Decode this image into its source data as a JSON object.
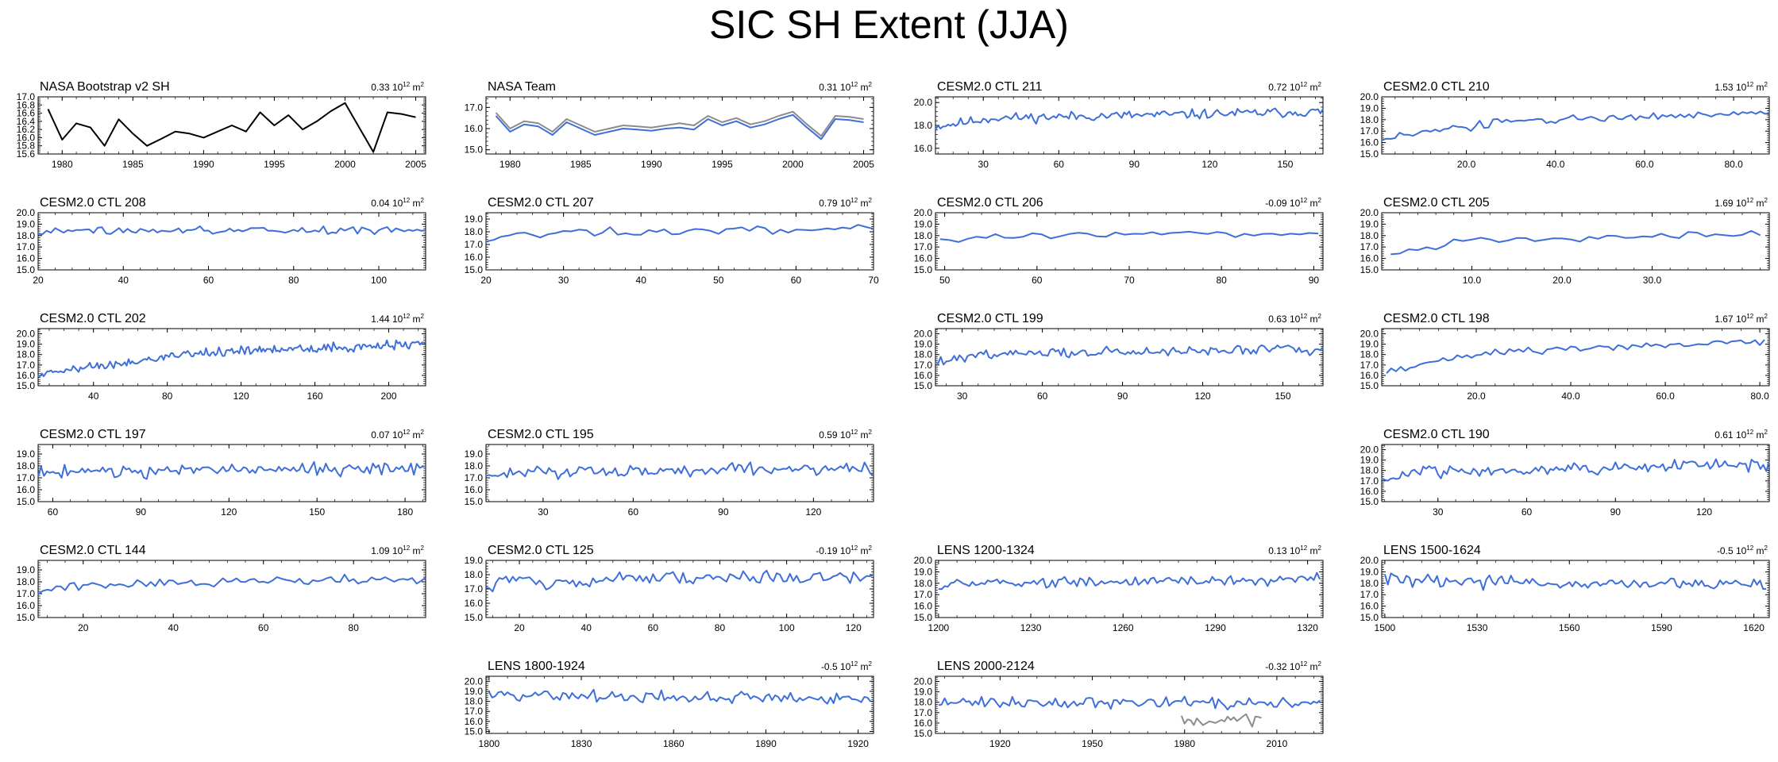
{
  "title": "SIC SH Extent (JJA)",
  "unit_prefix": "10",
  "unit_exp": "12",
  "unit_suffix": "m",
  "unit_suffix_exp": "2",
  "colors": {
    "model": "#3E6FD8",
    "obs": "#000000",
    "obs_alt": "#8C8C8C",
    "frame": "#000000"
  },
  "chart_data": [
    {
      "type": "line",
      "title": "NASA Bootstrap v2 SH",
      "trend": "0.33",
      "color": "obs",
      "x": [
        1979,
        1980,
        1981,
        1982,
        1983,
        1984,
        1985,
        1986,
        1987,
        1988,
        1989,
        1990,
        1991,
        1992,
        1993,
        1994,
        1995,
        1996,
        1997,
        1998,
        1999,
        2000,
        2001,
        2002,
        2003,
        2004,
        2005
      ],
      "series": [
        {
          "name": "NASA Bootstrap v2 SH",
          "values": [
            16.7,
            15.95,
            16.35,
            16.25,
            15.8,
            16.45,
            16.1,
            15.8,
            15.97,
            16.15,
            16.1,
            16.0,
            16.15,
            16.3,
            16.15,
            16.62,
            16.3,
            16.55,
            16.2,
            16.4,
            16.65,
            16.85,
            16.25,
            15.65,
            16.62,
            16.58,
            16.5
          ]
        }
      ],
      "xticks": [
        1980,
        1985,
        1990,
        1995,
        2000,
        2005
      ],
      "xticklabels": [
        "1980",
        "1985",
        "1990",
        "1995",
        "2000",
        "2005"
      ],
      "xlim": [
        1978.3,
        2005.7
      ],
      "ylim": [
        15.6,
        17.0
      ],
      "yticks": [
        15.6,
        15.8,
        16.0,
        16.2,
        16.4,
        16.6,
        16.8,
        17.0
      ],
      "yticklabels": [
        "15.6",
        "15.8",
        "16.0",
        "16.2",
        "16.4",
        "16.6",
        "16.8",
        "17.0"
      ]
    },
    {
      "type": "line",
      "title": "NASA Team",
      "trend": "0.31",
      "color": "model",
      "x": [
        1979,
        1980,
        1981,
        1982,
        1983,
        1984,
        1985,
        1986,
        1987,
        1988,
        1989,
        1990,
        1991,
        1992,
        1993,
        1994,
        1995,
        1996,
        1997,
        1998,
        1999,
        2000,
        2001,
        2002,
        2003,
        2004,
        2005
      ],
      "series": [
        {
          "name": "NASA Team",
          "color": "model",
          "values": [
            16.6,
            15.85,
            16.2,
            16.1,
            15.7,
            16.3,
            16.0,
            15.7,
            15.85,
            16.0,
            15.95,
            15.9,
            16.0,
            16.05,
            15.95,
            16.45,
            16.15,
            16.35,
            16.05,
            16.2,
            16.45,
            16.65,
            16.05,
            15.5,
            16.45,
            16.4,
            16.3
          ]
        },
        {
          "name": "NASA Team (alt)",
          "color": "obs_alt",
          "values": [
            16.75,
            16.0,
            16.35,
            16.25,
            15.85,
            16.45,
            16.15,
            15.85,
            16.0,
            16.15,
            16.1,
            16.05,
            16.15,
            16.25,
            16.15,
            16.6,
            16.3,
            16.5,
            16.2,
            16.35,
            16.6,
            16.8,
            16.2,
            15.65,
            16.6,
            16.55,
            16.45
          ]
        }
      ],
      "xticks": [
        1980,
        1985,
        1990,
        1995,
        2000,
        2005
      ],
      "xticklabels": [
        "1980",
        "1985",
        "1990",
        "1995",
        "2000",
        "2005"
      ],
      "xlim": [
        1978.3,
        2005.7
      ],
      "ylim": [
        14.8,
        17.5
      ],
      "yticks": [
        15.0,
        16.0,
        17.0
      ],
      "yticklabels": [
        "15.0",
        "16.0",
        "17.0"
      ]
    },
    {
      "type": "line",
      "title": "CESM2.0 CTL 211",
      "trend": "0.72",
      "color": "model",
      "gen": {
        "x0": 11,
        "x1": 165,
        "seed": 11,
        "amp": 0.42,
        "start": 17.9,
        "end": 19.2,
        "rise": 15
      },
      "xticks": [
        30,
        60,
        90,
        120,
        150
      ],
      "xticklabels": [
        "30",
        "60",
        "90",
        "120",
        "150"
      ],
      "xlim": [
        11,
        165
      ],
      "ylim": [
        15.5,
        20.5
      ],
      "yticks": [
        16.0,
        18.0,
        20.0
      ],
      "yticklabels": [
        "16.0",
        "18.0",
        "20.0"
      ]
    },
    {
      "type": "line",
      "title": "CESM2.0 CTL 210",
      "trend": "1.53",
      "color": "model",
      "gen": {
        "x0": 1,
        "x1": 88,
        "seed": 210,
        "amp": 0.35,
        "start": 16.3,
        "end": 18.6,
        "rise": 30
      },
      "xticks": [
        20,
        40,
        60,
        80
      ],
      "xticklabels": [
        "20.0",
        "40.0",
        "60.0",
        "80.0"
      ],
      "xlim": [
        1,
        88
      ],
      "ylim": [
        15.0,
        20.0
      ],
      "yticks": [
        15.0,
        16.0,
        17.0,
        18.0,
        19.0,
        20.0
      ],
      "yticklabels": [
        "15.0",
        "16.0",
        "17.0",
        "18.0",
        "19.0",
        "20.0"
      ]
    },
    {
      "type": "line",
      "title": "CESM2.0 CTL 208",
      "trend": "0.04",
      "color": "model",
      "gen": {
        "x0": 20,
        "x1": 111,
        "seed": 208,
        "amp": 0.3,
        "start": 18.4,
        "end": 18.5,
        "rise": 5
      },
      "xticks": [
        20,
        40,
        60,
        80,
        100
      ],
      "xticklabels": [
        "20",
        "40",
        "60",
        "80",
        "100"
      ],
      "xlim": [
        20,
        111
      ],
      "ylim": [
        15.0,
        20.0
      ],
      "yticks": [
        15.0,
        16.0,
        17.0,
        18.0,
        19.0,
        20.0
      ],
      "yticklabels": [
        "15.0",
        "16.0",
        "17.0",
        "18.0",
        "19.0",
        "20.0"
      ]
    },
    {
      "type": "line",
      "title": "CESM2.0 CTL 207",
      "trend": "0.79",
      "color": "model",
      "gen": {
        "x0": 20,
        "x1": 70,
        "seed": 207,
        "amp": 0.3,
        "start": 17.4,
        "end": 18.3,
        "rise": 12
      },
      "xticks": [
        20,
        30,
        40,
        50,
        60,
        70
      ],
      "xticklabels": [
        "20",
        "30",
        "40",
        "50",
        "60",
        "70"
      ],
      "xlim": [
        20,
        70
      ],
      "ylim": [
        15.0,
        19.5
      ],
      "yticks": [
        15.0,
        16.0,
        17.0,
        18.0,
        19.0
      ],
      "yticklabels": [
        "15.0",
        "16.0",
        "17.0",
        "18.0",
        "19.0"
      ]
    },
    {
      "type": "line",
      "title": "CESM2.0 CTL 206",
      "trend": "-0.09",
      "color": "model",
      "gen": {
        "x0": 49.5,
        "x1": 90.5,
        "seed": 206,
        "amp": 0.3,
        "start": 17.5,
        "end": 18.3,
        "rise": 15
      },
      "xticks": [
        50,
        60,
        70,
        80,
        90
      ],
      "xticklabels": [
        "50",
        "60",
        "70",
        "80",
        "90"
      ],
      "xlim": [
        49,
        91
      ],
      "ylim": [
        15.0,
        20.0
      ],
      "yticks": [
        15.0,
        16.0,
        17.0,
        18.0,
        19.0,
        20.0
      ],
      "yticklabels": [
        "15.0",
        "16.0",
        "17.0",
        "18.0",
        "19.0",
        "20.0"
      ]
    },
    {
      "type": "line",
      "title": "CESM2.0 CTL 205",
      "trend": "1.69",
      "color": "model",
      "gen": {
        "x0": 1,
        "x1": 42,
        "seed": 205,
        "amp": 0.3,
        "start": 16.4,
        "end": 18.2,
        "rise": 20
      },
      "xticks": [
        10,
        20,
        30
      ],
      "xticklabels": [
        "10.0",
        "20.0",
        "30.0"
      ],
      "xlim": [
        0,
        43
      ],
      "ylim": [
        15.0,
        20.0
      ],
      "yticks": [
        15.0,
        16.0,
        17.0,
        18.0,
        19.0,
        20.0
      ],
      "yticklabels": [
        "15.0",
        "16.0",
        "17.0",
        "18.0",
        "19.0",
        "20.0"
      ]
    },
    {
      "type": "line",
      "title": "CESM2.0 CTL 202",
      "trend": "1.44",
      "color": "model",
      "gen": {
        "x0": 10,
        "x1": 220,
        "seed": 202,
        "amp": 0.45,
        "start": 16.2,
        "end": 19.0,
        "rise": 40
      },
      "xticks": [
        40,
        80,
        120,
        160,
        200
      ],
      "xticklabels": [
        "40",
        "80",
        "120",
        "160",
        "200"
      ],
      "xlim": [
        10,
        220
      ],
      "ylim": [
        15.0,
        20.5
      ],
      "yticks": [
        15.0,
        16.0,
        17.0,
        18.0,
        19.0,
        20.0
      ],
      "yticklabels": [
        "15.0",
        "16.0",
        "17.0",
        "18.0",
        "19.0",
        "20.0"
      ]
    },
    {
      "type": "line",
      "title": "CESM2.0 CTL 199",
      "trend": "0.63",
      "color": "model",
      "gen": {
        "x0": 20,
        "x1": 165,
        "seed": 199,
        "amp": 0.45,
        "start": 17.6,
        "end": 18.5,
        "rise": 20
      },
      "xticks": [
        30,
        60,
        90,
        120,
        150
      ],
      "xticklabels": [
        "30",
        "60",
        "90",
        "120",
        "150"
      ],
      "xlim": [
        20,
        165
      ],
      "ylim": [
        15.0,
        20.5
      ],
      "yticks": [
        15.0,
        16.0,
        17.0,
        18.0,
        19.0,
        20.0
      ],
      "yticklabels": [
        "15.0",
        "16.0",
        "17.0",
        "18.0",
        "19.0",
        "20.0"
      ]
    },
    {
      "type": "line",
      "title": "CESM2.0 CTL 198",
      "trend": "1.67",
      "color": "model",
      "gen": {
        "x0": 1,
        "x1": 81,
        "seed": 198,
        "amp": 0.35,
        "start": 16.4,
        "end": 19.3,
        "rise": 25
      },
      "xticks": [
        20,
        40,
        60,
        80
      ],
      "xticklabels": [
        "20.0",
        "40.0",
        "60.0",
        "80.0"
      ],
      "xlim": [
        0,
        82
      ],
      "ylim": [
        15.0,
        20.5
      ],
      "yticks": [
        15.0,
        16.0,
        17.0,
        18.0,
        19.0,
        20.0
      ],
      "yticklabels": [
        "15.0",
        "16.0",
        "17.0",
        "18.0",
        "19.0",
        "20.0"
      ]
    },
    {
      "type": "line",
      "title": "CESM2.0 CTL 197",
      "trend": "0.07",
      "color": "model",
      "gen": {
        "x0": 55,
        "x1": 187,
        "seed": 197,
        "amp": 0.55,
        "start": 17.3,
        "end": 17.8,
        "rise": 5
      },
      "xticks": [
        60,
        90,
        120,
        150,
        180
      ],
      "xticklabels": [
        "60",
        "90",
        "120",
        "150",
        "180"
      ],
      "xlim": [
        55,
        187
      ],
      "ylim": [
        15.0,
        19.8
      ],
      "yticks": [
        15.0,
        16.0,
        17.0,
        18.0,
        19.0
      ],
      "yticklabels": [
        "15.0",
        "16.0",
        "17.0",
        "18.0",
        "19.0"
      ]
    },
    {
      "type": "line",
      "title": "CESM2.0 CTL 195",
      "trend": "0.59",
      "color": "model",
      "gen": {
        "x0": 11,
        "x1": 140,
        "seed": 195,
        "amp": 0.5,
        "start": 17.1,
        "end": 17.8,
        "rise": 5
      },
      "xticks": [
        30,
        60,
        90,
        120
      ],
      "xticklabels": [
        "30",
        "60",
        "90",
        "120"
      ],
      "xlim": [
        11,
        140
      ],
      "ylim": [
        15.0,
        19.8
      ],
      "yticks": [
        15.0,
        16.0,
        17.0,
        18.0,
        19.0
      ],
      "yticklabels": [
        "15.0",
        "16.0",
        "17.0",
        "18.0",
        "19.0"
      ]
    },
    {
      "type": "line",
      "title": "CESM2.0 CTL 190",
      "trend": "0.61",
      "color": "model",
      "gen": {
        "x0": 11,
        "x1": 142,
        "seed": 190,
        "amp": 0.55,
        "start": 17.1,
        "end": 18.6,
        "rise": 10
      },
      "xticks": [
        30,
        60,
        90,
        120
      ],
      "xticklabels": [
        "30",
        "60",
        "90",
        "120"
      ],
      "xlim": [
        11,
        142
      ],
      "ylim": [
        15.0,
        20.5
      ],
      "yticks": [
        15.0,
        16.0,
        17.0,
        18.0,
        19.0,
        20.0
      ],
      "yticklabels": [
        "15.0",
        "16.0",
        "17.0",
        "18.0",
        "19.0",
        "20.0"
      ]
    },
    {
      "type": "line",
      "title": "CESM2.0 CTL 144",
      "trend": "1.09",
      "color": "model",
      "gen": {
        "x0": 10,
        "x1": 96,
        "seed": 144,
        "amp": 0.35,
        "start": 17.1,
        "end": 18.3,
        "rise": 10
      },
      "xticks": [
        20,
        40,
        60,
        80
      ],
      "xticklabels": [
        "20",
        "40",
        "60",
        "80"
      ],
      "xlim": [
        10,
        96
      ],
      "ylim": [
        15.0,
        19.8
      ],
      "yticks": [
        15.0,
        16.0,
        17.0,
        18.0,
        19.0
      ],
      "yticklabels": [
        "15.0",
        "16.0",
        "17.0",
        "18.0",
        "19.0"
      ]
    },
    {
      "type": "line",
      "title": "CESM2.0 CTL 125",
      "trend": "-0.19",
      "color": "model",
      "gen": {
        "x0": 10,
        "x1": 126,
        "seed": 125,
        "amp": 0.5,
        "start": 17.2,
        "end": 17.9,
        "rise": 5
      },
      "xticks": [
        20,
        40,
        60,
        80,
        100,
        120
      ],
      "xticklabels": [
        "20",
        "40",
        "60",
        "80",
        "100",
        "120"
      ],
      "xlim": [
        10,
        126
      ],
      "ylim": [
        15.0,
        19.0
      ],
      "yticks": [
        15.0,
        16.0,
        17.0,
        18.0,
        19.0
      ],
      "yticklabels": [
        "15.0",
        "16.0",
        "17.0",
        "18.0",
        "19.0"
      ]
    },
    {
      "type": "line",
      "title": "LENS 1200-1324",
      "trend": "0.13",
      "color": "model",
      "gen": {
        "x0": 1200,
        "x1": 1324,
        "seed": 1200,
        "amp": 0.45,
        "start": 17.6,
        "end": 18.3,
        "rise": 5
      },
      "xticks": [
        1200,
        1230,
        1260,
        1290,
        1320
      ],
      "xticklabels": [
        "1200",
        "1230",
        "1260",
        "1290",
        "1320"
      ],
      "xlim": [
        1199,
        1325
      ],
      "ylim": [
        15.0,
        20.0
      ],
      "yticks": [
        15.0,
        16.0,
        17.0,
        18.0,
        19.0,
        20.0
      ],
      "yticklabels": [
        "15.0",
        "16.0",
        "17.0",
        "18.0",
        "19.0",
        "20.0"
      ]
    },
    {
      "type": "line",
      "title": "LENS 1500-1624",
      "trend": "-0.5",
      "color": "model",
      "gen": {
        "x0": 1500,
        "x1": 1624,
        "seed": 1500,
        "amp": 0.55,
        "start": 18.5,
        "end": 17.9,
        "rise": 5
      },
      "xticks": [
        1500,
        1530,
        1560,
        1590,
        1620
      ],
      "xticklabels": [
        "1500",
        "1530",
        "1560",
        "1590",
        "1620"
      ],
      "xlim": [
        1499,
        1625
      ],
      "ylim": [
        15.0,
        20.0
      ],
      "yticks": [
        15.0,
        16.0,
        17.0,
        18.0,
        19.0,
        20.0
      ],
      "yticklabels": [
        "15.0",
        "16.0",
        "17.0",
        "18.0",
        "19.0",
        "20.0"
      ]
    },
    {
      "type": "line",
      "title": "LENS 1800-1924",
      "trend": "-0.5",
      "color": "model",
      "gen": {
        "x0": 1800,
        "x1": 1924,
        "seed": 1800,
        "amp": 0.55,
        "start": 18.8,
        "end": 18.3,
        "rise": 5
      },
      "xticks": [
        1800,
        1830,
        1860,
        1890,
        1920
      ],
      "xticklabels": [
        "1800",
        "1830",
        "1860",
        "1890",
        "1920"
      ],
      "xlim": [
        1799,
        1925
      ],
      "ylim": [
        14.8,
        20.5
      ],
      "yticks": [
        15.0,
        16.0,
        17.0,
        18.0,
        19.0,
        20.0
      ],
      "yticklabels": [
        "15.0",
        "16.0",
        "17.0",
        "18.0",
        "19.0",
        "20.0"
      ]
    },
    {
      "type": "line",
      "title": "LENS 2000-2124",
      "trend": "-0.32",
      "color": "model",
      "gen": {
        "x0": 1900,
        "x1": 2024,
        "seed": 2000,
        "amp": 0.5,
        "start": 18.0,
        "end": 17.9,
        "rise": 5
      },
      "overlay": {
        "name": "NASA Bootstrap v2 SH",
        "color": "obs_alt",
        "x": [
          1979,
          1980,
          1981,
          1982,
          1983,
          1984,
          1985,
          1986,
          1987,
          1988,
          1989,
          1990,
          1991,
          1992,
          1993,
          1994,
          1995,
          1996,
          1997,
          1998,
          1999,
          2000,
          2001,
          2002,
          2003,
          2004,
          2005
        ],
        "values": [
          16.7,
          15.95,
          16.35,
          16.25,
          15.8,
          16.45,
          16.1,
          15.8,
          15.97,
          16.15,
          16.1,
          16.0,
          16.15,
          16.3,
          16.15,
          16.62,
          16.3,
          16.55,
          16.2,
          16.4,
          16.65,
          16.85,
          16.25,
          15.65,
          16.62,
          16.58,
          16.5
        ]
      },
      "xticks": [
        1920,
        1950,
        1980,
        2010
      ],
      "xticklabels": [
        "1920",
        "1950",
        "1980",
        "2010"
      ],
      "xlim": [
        1899,
        2025
      ],
      "ylim": [
        15.0,
        20.5
      ],
      "yticks": [
        15.0,
        16.0,
        17.0,
        18.0,
        19.0,
        20.0
      ],
      "yticklabels": [
        "15.0",
        "16.0",
        "17.0",
        "18.0",
        "19.0",
        "20.0"
      ]
    }
  ]
}
